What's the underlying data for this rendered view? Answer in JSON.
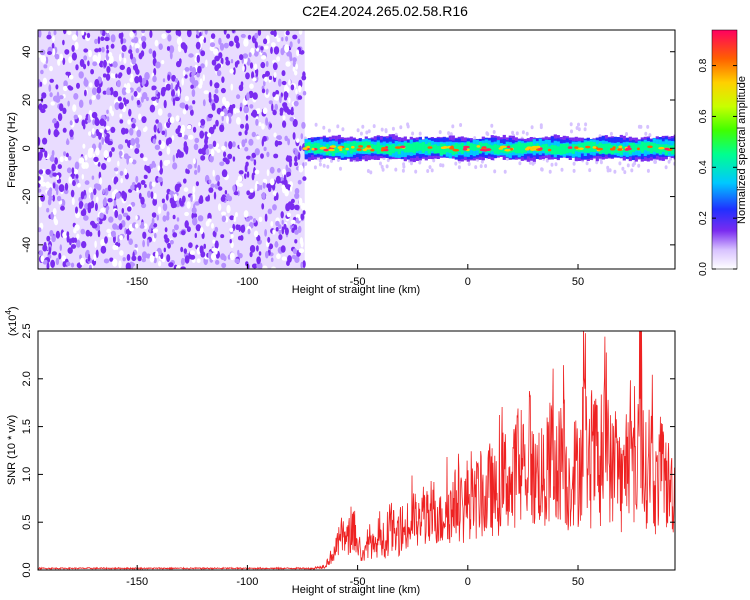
{
  "title": "C2E4.2024.265.02.58.R16",
  "colors": {
    "snr_line": "#ee2222",
    "sparse_noise": "#7a2cf0",
    "background": "#ffffff"
  },
  "chart_data": [
    {
      "type": "heatmap",
      "xlabel": "Height of straight line (km)",
      "ylabel": "Frequency (Hz)",
      "xlim": [
        -195,
        94
      ],
      "ylim": [
        -50,
        49
      ],
      "x_ticks": [
        -150,
        -100,
        -50,
        0,
        50
      ],
      "x_tick_labels": [
        "-150",
        "-100",
        "-50",
        "0",
        "50"
      ],
      "y_ticks": [
        -40,
        -20,
        0,
        20,
        40
      ],
      "y_tick_labels": [
        "-40",
        "-20",
        "0",
        "20",
        "40"
      ],
      "noise_region_x": [
        -195,
        -74
      ],
      "signal_region_x": [
        -74,
        94
      ],
      "signal_center_frequency": 0,
      "signal_band_halfwidth_hz": 4,
      "colorbar": {
        "label": "Normalized spectral amplitude",
        "range": [
          0,
          0.94
        ],
        "ticks": [
          0,
          0.2,
          0.4,
          0.6,
          0.8
        ],
        "tick_labels": [
          "0.0",
          "0.2",
          "0.4",
          "0.6",
          "0.8"
        ]
      }
    },
    {
      "type": "line",
      "xlabel": "Height of straight line (km)",
      "ylabel": "SNR (10 * v/v)",
      "y_multiplier_label": "(x10",
      "y_multiplier_exponent": "4",
      "y_multiplier_close": ")",
      "xlim": [
        -195,
        94
      ],
      "ylim": [
        0,
        2.5
      ],
      "x_ticks": [
        -150,
        -100,
        -50,
        0,
        50
      ],
      "x_tick_labels": [
        "-150",
        "-100",
        "-50",
        "0",
        "50"
      ],
      "y_ticks": [
        0,
        0.5,
        1.0,
        1.5,
        2.0,
        2.5
      ],
      "y_tick_labels": [
        "0.0",
        "0.5",
        "1.0",
        "1.5",
        "2.0",
        "2.5"
      ],
      "series": [
        {
          "x": [
            -195,
            -150,
            -100,
            -75,
            -70,
            -65,
            -60,
            -57,
            -55,
            -52,
            -50,
            -47,
            -45,
            -42,
            -40,
            -37,
            -35,
            -32,
            -30,
            -27,
            -25,
            -22,
            -20,
            -17,
            -15,
            -12,
            -10,
            -7,
            -5,
            -2,
            0,
            3,
            5,
            8,
            10,
            13,
            15,
            18,
            20,
            22,
            25,
            28,
            30,
            33,
            35,
            38,
            40,
            43,
            45,
            48,
            50,
            53,
            55,
            58,
            60,
            63,
            65,
            68,
            70,
            73,
            75,
            77,
            78,
            80,
            83,
            85,
            88,
            90,
            94
          ],
          "y": [
            0.01,
            0.01,
            0.01,
            0.01,
            0.02,
            0.05,
            0.25,
            0.45,
            0.35,
            0.55,
            0.3,
            0.15,
            0.4,
            0.25,
            0.5,
            0.3,
            0.6,
            0.35,
            0.55,
            0.45,
            0.7,
            0.5,
            0.75,
            0.55,
            0.8,
            0.6,
            0.85,
            0.7,
            0.9,
            0.75,
            0.95,
            0.8,
            1.0,
            0.85,
            1.05,
            0.9,
            1.1,
            1.2,
            0.95,
            1.4,
            1.0,
            1.6,
            1.1,
            1.3,
            1.0,
            1.5,
            1.1,
            1.6,
            1.0,
            1.3,
            1.2,
            1.8,
            1.1,
            1.5,
            1.0,
            1.9,
            1.2,
            1.4,
            1.0,
            1.6,
            1.2,
            1.4,
            2.5,
            1.1,
            1.5,
            1.0,
            1.3,
            1.1,
            1.0
          ]
        }
      ]
    }
  ]
}
